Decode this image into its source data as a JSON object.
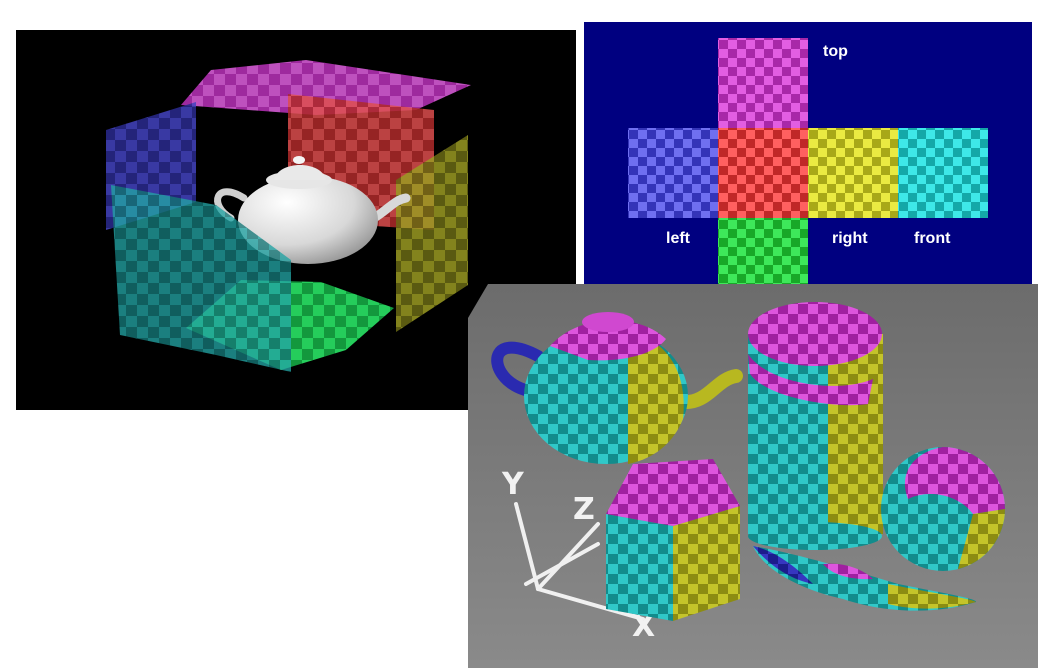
{
  "figure": {
    "cube_net_labels": {
      "top": "top",
      "left": "left",
      "right": "right",
      "front": "front"
    },
    "axes_labels": {
      "y": "Y",
      "z": "Z",
      "x": "X"
    }
  },
  "colors": {
    "magenta": "#cc33cc",
    "red": "#dd3333",
    "blue": "#4d4ddd",
    "yellow": "#cccc22",
    "cyan": "#22cccc",
    "green": "#22cc33",
    "net_background": "#000080",
    "floor": "#7a7a7a"
  }
}
